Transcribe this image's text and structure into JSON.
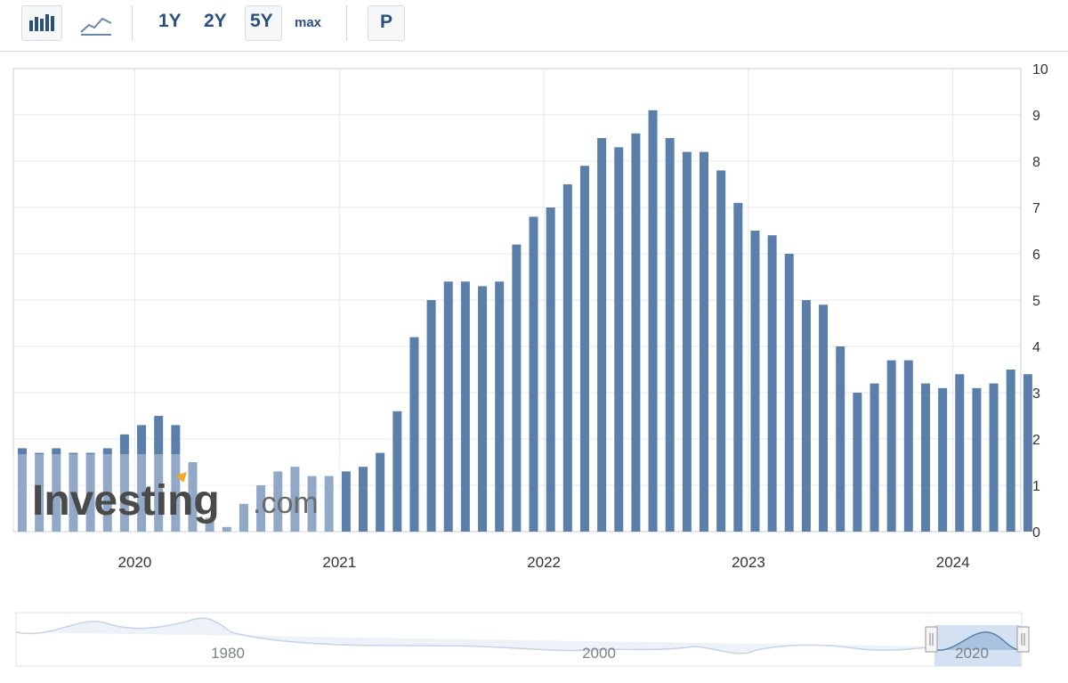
{
  "toolbar": {
    "chart_types": [
      {
        "name": "bar-chart-icon",
        "active": true
      },
      {
        "name": "line-chart-icon",
        "active": false
      }
    ],
    "ranges": [
      "1Y",
      "2Y",
      "5Y",
      "max"
    ],
    "active_range": "5Y",
    "p_label": "P"
  },
  "watermark": {
    "brand": "Investing",
    "suffix": ".com"
  },
  "chart_data": {
    "type": "bar",
    "title": "",
    "xlabel": "",
    "ylabel": "",
    "ylim": [
      0,
      10
    ],
    "y_ticks": [
      0,
      1,
      2,
      3,
      4,
      5,
      6,
      7,
      8,
      9,
      10
    ],
    "y_axis_side": "right",
    "grid": true,
    "x_ticks": [
      {
        "label": "2020",
        "x": "2020-01"
      },
      {
        "label": "2021",
        "x": "2021-01"
      },
      {
        "label": "2022",
        "x": "2022-01"
      },
      {
        "label": "2023",
        "x": "2023-01"
      },
      {
        "label": "2024",
        "x": "2024-01"
      }
    ],
    "categories": [
      "2019-06",
      "2019-07",
      "2019-08",
      "2019-09",
      "2019-10",
      "2019-11",
      "2019-12",
      "2020-01",
      "2020-02",
      "2020-03",
      "2020-04",
      "2020-05",
      "2020-06",
      "2020-07",
      "2020-08",
      "2020-09",
      "2020-10",
      "2020-11",
      "2020-12",
      "2021-01",
      "2021-02",
      "2021-03",
      "2021-04",
      "2021-05",
      "2021-06",
      "2021-07",
      "2021-08",
      "2021-09",
      "2021-10",
      "2021-11",
      "2021-12",
      "2022-01",
      "2022-02",
      "2022-03",
      "2022-04",
      "2022-05",
      "2022-06",
      "2022-07",
      "2022-08",
      "2022-09",
      "2022-10",
      "2022-11",
      "2022-12",
      "2023-01",
      "2023-02",
      "2023-03",
      "2023-04",
      "2023-05",
      "2023-06",
      "2023-07",
      "2023-08",
      "2023-09",
      "2023-10",
      "2023-11",
      "2023-12",
      "2024-01",
      "2024-02",
      "2024-03",
      "2024-04",
      "2024-05"
    ],
    "values": [
      1.8,
      1.7,
      1.8,
      1.7,
      1.7,
      1.8,
      2.1,
      2.3,
      2.5,
      2.3,
      1.5,
      0.3,
      0.1,
      0.6,
      1.0,
      1.3,
      1.4,
      1.2,
      1.2,
      1.3,
      1.4,
      1.7,
      2.6,
      4.2,
      5.0,
      5.4,
      5.4,
      5.3,
      5.4,
      6.2,
      6.8,
      7.0,
      7.5,
      7.9,
      8.5,
      8.3,
      8.6,
      9.1,
      8.5,
      8.2,
      8.2,
      7.8,
      7.1,
      6.5,
      6.4,
      6.0,
      5.0,
      4.9,
      4.0,
      3.0,
      3.2,
      3.7,
      3.7,
      3.2,
      3.1,
      3.4,
      3.1,
      3.2,
      3.5,
      3.4
    ],
    "bar_color": "#5b7fab"
  },
  "navigator": {
    "labels": [
      "1980",
      "2000",
      "2020"
    ]
  }
}
